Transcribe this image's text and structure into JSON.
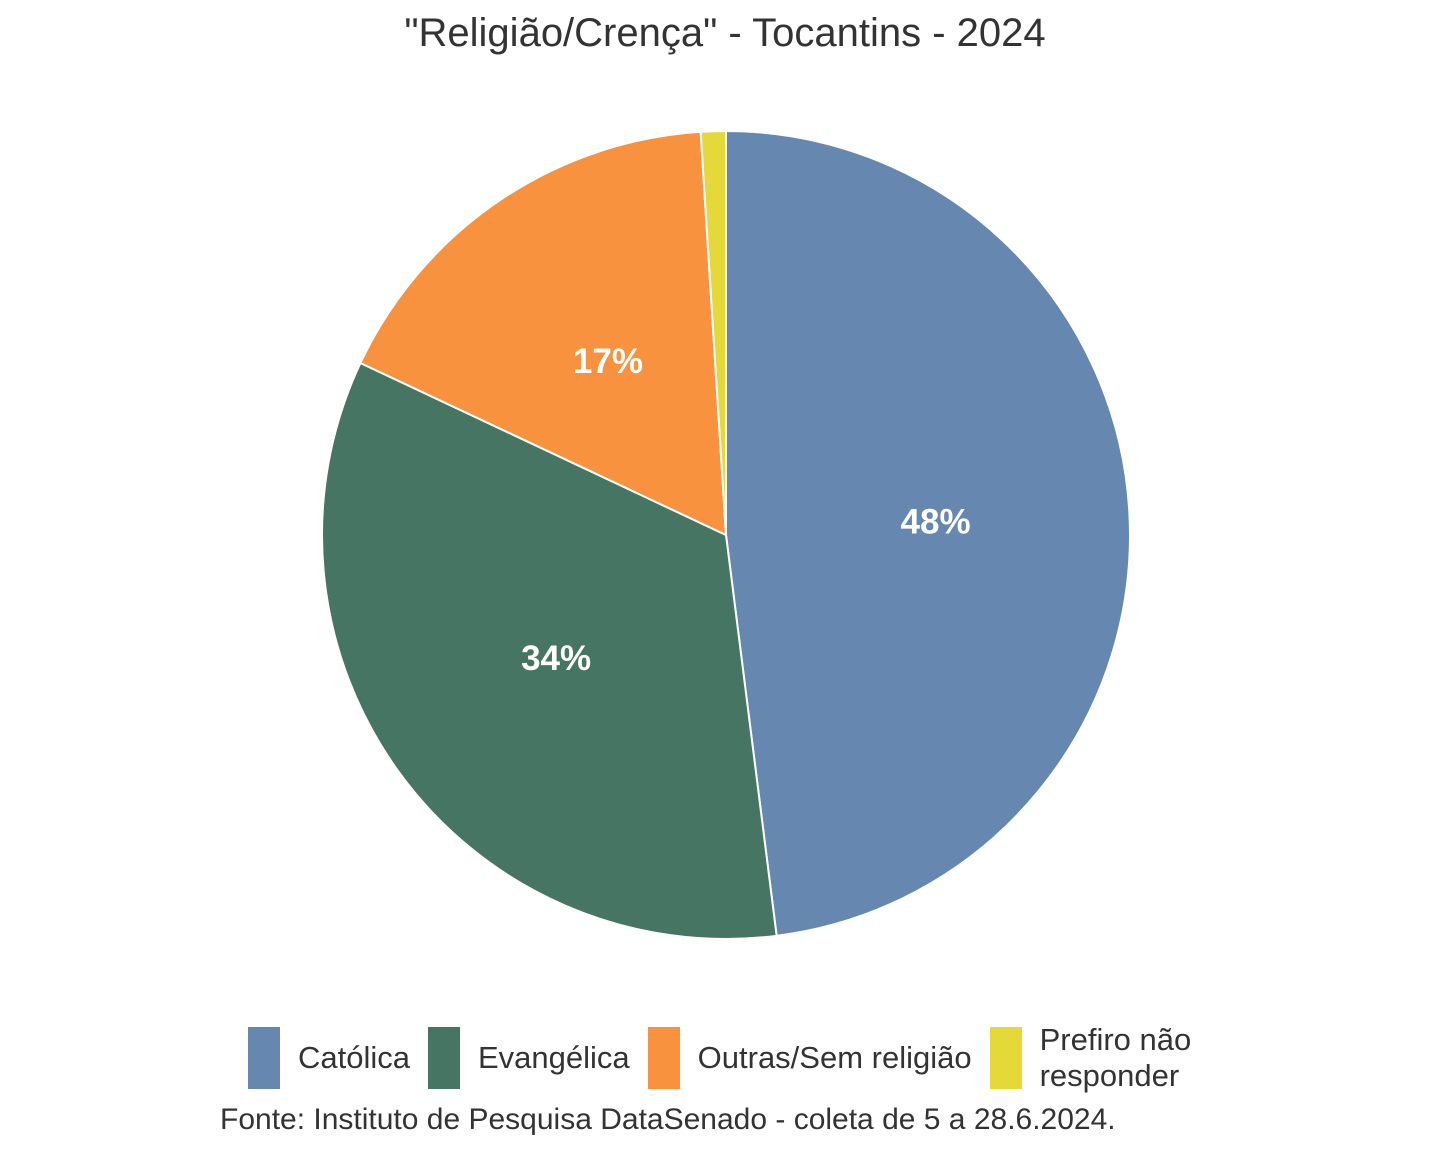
{
  "chart_data": {
    "type": "pie",
    "title": "\"Religião/Crença\" - Tocantins - 2024",
    "slices": [
      {
        "name": "Católica",
        "value": 48,
        "label": "48%",
        "color": "#6688b0"
      },
      {
        "name": "Evangélica",
        "value": 34,
        "label": "34%",
        "color": "#467564"
      },
      {
        "name": "Outras/Sem religião",
        "value": 17,
        "label": "17%",
        "color": "#f9923e"
      },
      {
        "name": "Prefiro não\nresponder",
        "value": 1,
        "label": "",
        "color": "#e5d93a"
      }
    ],
    "legend_position": "bottom",
    "source": "Fonte: Instituto de Pesquisa DataSenado - coleta de 5 a 28.6.2024."
  }
}
